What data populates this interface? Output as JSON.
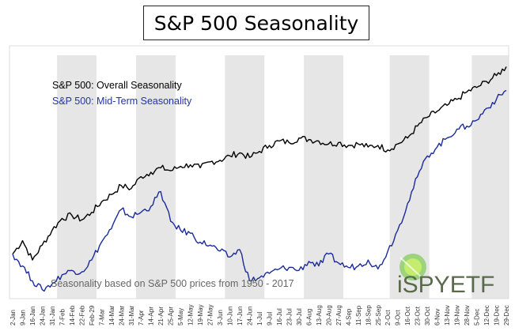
{
  "chart_data": {
    "type": "line",
    "title": "S&P 500 Seasonality",
    "annotation": "Seasonality based on S&P 500 prices from 1950 - 2017",
    "logo_text": "iSPYETF",
    "x_ticks": [
      "2-Jan",
      "9-Jan",
      "16-Jan",
      "24-Jan",
      "31-Jan",
      "7-Feb",
      "14-Feb",
      "22-Feb",
      "Feb-29",
      "7-Mar",
      "14-Mar",
      "24-Mar",
      "31-Mar",
      "7-Apr",
      "14-Apr",
      "21-Apr",
      "25-Apr",
      "5-May",
      "12-May",
      "19-May",
      "27-May",
      "3-Jun",
      "10-Jun",
      "17-Jun",
      "24-Jun",
      "1-Jul",
      "9-Jul",
      "16-Jul",
      "23-Jul",
      "30-Jul",
      "6-Aug",
      "13-Aug",
      "20-Aug",
      "27-Aug",
      "4-Sep",
      "11-Sep",
      "18-Sep",
      "25-Sep",
      "2-Oct",
      "9-Oct",
      "16-Oct",
      "23-Oct",
      "30-Oct",
      "6-Nov",
      "13-Nov",
      "19-Nov",
      "28-Nov",
      "5-Dec",
      "12-Dec",
      "19-Dec",
      "29-Dec"
    ],
    "shaded_months": [
      "Feb",
      "Apr",
      "Jun",
      "Aug",
      "Oct",
      "Dec"
    ],
    "grid": false,
    "legend_position": "top-left",
    "series": [
      {
        "name": "S&P 500: Overall Seasonality",
        "color": "#000000",
        "values": [
          0.0,
          0.9,
          -0.4,
          0.6,
          1.6,
          2.4,
          2.6,
          2.3,
          2.8,
          3.5,
          4.0,
          4.6,
          4.4,
          5.2,
          5.5,
          5.8,
          5.6,
          5.9,
          6.0,
          5.8,
          6.2,
          6.3,
          6.6,
          6.8,
          6.5,
          6.9,
          7.3,
          7.6,
          7.5,
          7.8,
          7.7,
          7.6,
          7.4,
          7.5,
          7.3,
          7.4,
          7.2,
          7.3,
          7.0,
          7.4,
          7.8,
          8.6,
          9.2,
          9.6,
          10.0,
          10.4,
          10.9,
          11.2,
          11.6,
          12.0,
          12.6
        ]
      },
      {
        "name": "S&P 500: Mid-Term Seasonality",
        "color": "#1a2a9c",
        "values": [
          0.0,
          -0.8,
          -1.8,
          -2.4,
          -2.0,
          -1.4,
          -1.1,
          -1.2,
          -0.4,
          0.8,
          1.7,
          3.0,
          2.5,
          2.8,
          3.2,
          4.2,
          2.2,
          1.6,
          1.4,
          0.8,
          0.6,
          0.2,
          -0.2,
          0.3,
          -1.8,
          -1.6,
          -1.3,
          -1.0,
          -0.9,
          -1.1,
          -0.5,
          -0.8,
          0.0,
          -0.6,
          -0.9,
          -0.8,
          -0.4,
          -1.0,
          0.2,
          1.6,
          3.4,
          5.2,
          6.6,
          7.2,
          7.8,
          8.4,
          8.6,
          9.0,
          9.8,
          10.4,
          11.0
        ]
      }
    ],
    "ylim": [
      -3,
      14
    ]
  }
}
